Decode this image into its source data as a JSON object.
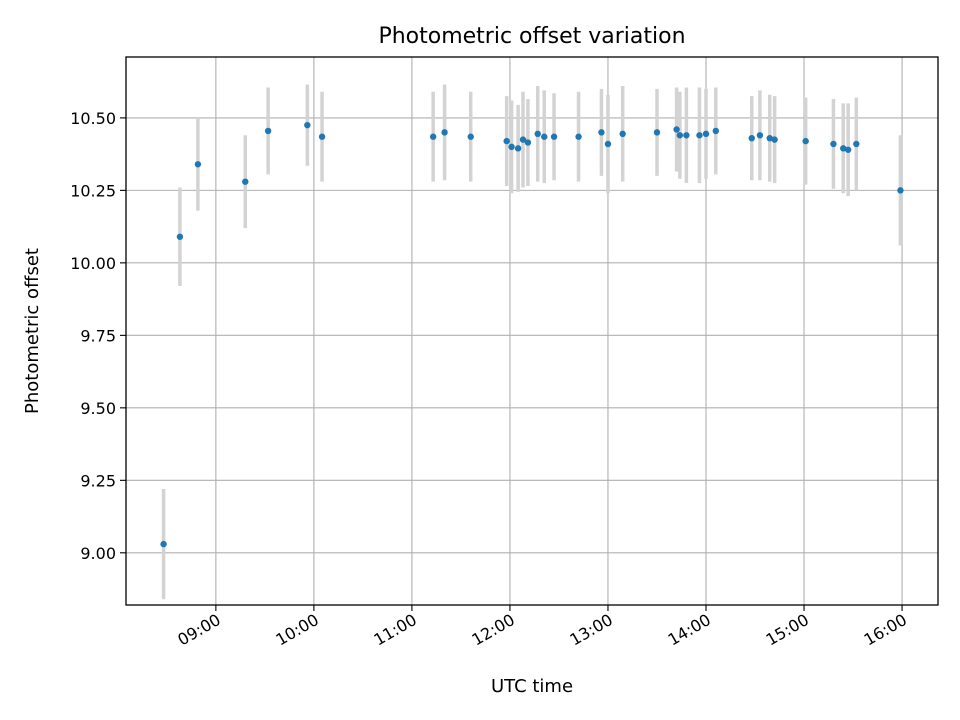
{
  "chart_data": {
    "type": "scatter",
    "title": "Photometric offset variation",
    "xlabel": "UTC time",
    "ylabel": "Photometric offset",
    "x_axis": "time (hours UTC)",
    "xlim": [
      "08:05",
      "16:22"
    ],
    "ylim": [
      8.82,
      10.71
    ],
    "xticks": [
      "09:00",
      "10:00",
      "11:00",
      "12:00",
      "13:00",
      "14:00",
      "15:00",
      "16:00"
    ],
    "yticks": [
      "9.00",
      "9.25",
      "9.50",
      "9.75",
      "10.00",
      "10.25",
      "10.50"
    ],
    "grid": true,
    "legend": "none",
    "point_color": "#1f77b4",
    "errorbar_color": "#d3d3d3",
    "points": [
      {
        "x": "08:28",
        "y": 9.03,
        "err": 0.19
      },
      {
        "x": "08:38",
        "y": 10.09,
        "err": 0.17
      },
      {
        "x": "08:49",
        "y": 10.34,
        "err": 0.16
      },
      {
        "x": "09:18",
        "y": 10.28,
        "err": 0.16
      },
      {
        "x": "09:32",
        "y": 10.455,
        "err": 0.15
      },
      {
        "x": "09:56",
        "y": 10.475,
        "err": 0.14
      },
      {
        "x": "10:05",
        "y": 10.435,
        "err": 0.155
      },
      {
        "x": "11:13",
        "y": 10.435,
        "err": 0.155
      },
      {
        "x": "11:20",
        "y": 10.45,
        "err": 0.165
      },
      {
        "x": "11:36",
        "y": 10.435,
        "err": 0.155
      },
      {
        "x": "11:58",
        "y": 10.42,
        "err": 0.155
      },
      {
        "x": "12:01",
        "y": 10.4,
        "err": 0.16
      },
      {
        "x": "12:05",
        "y": 10.395,
        "err": 0.15
      },
      {
        "x": "12:08",
        "y": 10.425,
        "err": 0.165
      },
      {
        "x": "12:11",
        "y": 10.415,
        "err": 0.15
      },
      {
        "x": "12:17",
        "y": 10.445,
        "err": 0.165
      },
      {
        "x": "12:21",
        "y": 10.435,
        "err": 0.16
      },
      {
        "x": "12:27",
        "y": 10.435,
        "err": 0.15
      },
      {
        "x": "12:42",
        "y": 10.435,
        "err": 0.155
      },
      {
        "x": "12:56",
        "y": 10.45,
        "err": 0.15
      },
      {
        "x": "13:00",
        "y": 10.41,
        "err": 0.17
      },
      {
        "x": "13:09",
        "y": 10.445,
        "err": 0.165
      },
      {
        "x": "13:30",
        "y": 10.45,
        "err": 0.15
      },
      {
        "x": "13:42",
        "y": 10.46,
        "err": 0.145
      },
      {
        "x": "13:44",
        "y": 10.44,
        "err": 0.15
      },
      {
        "x": "13:48",
        "y": 10.44,
        "err": 0.165
      },
      {
        "x": "13:56",
        "y": 10.44,
        "err": 0.165
      },
      {
        "x": "14:00",
        "y": 10.445,
        "err": 0.155
      },
      {
        "x": "14:06",
        "y": 10.455,
        "err": 0.15
      },
      {
        "x": "14:28",
        "y": 10.43,
        "err": 0.145
      },
      {
        "x": "14:33",
        "y": 10.44,
        "err": 0.155
      },
      {
        "x": "14:39",
        "y": 10.43,
        "err": 0.15
      },
      {
        "x": "14:42",
        "y": 10.425,
        "err": 0.15
      },
      {
        "x": "15:01",
        "y": 10.42,
        "err": 0.15
      },
      {
        "x": "15:18",
        "y": 10.41,
        "err": 0.155
      },
      {
        "x": "15:24",
        "y": 10.395,
        "err": 0.155
      },
      {
        "x": "15:27",
        "y": 10.39,
        "err": 0.16
      },
      {
        "x": "15:32",
        "y": 10.41,
        "err": 0.16
      },
      {
        "x": "15:59",
        "y": 10.25,
        "err": 0.19
      }
    ]
  }
}
